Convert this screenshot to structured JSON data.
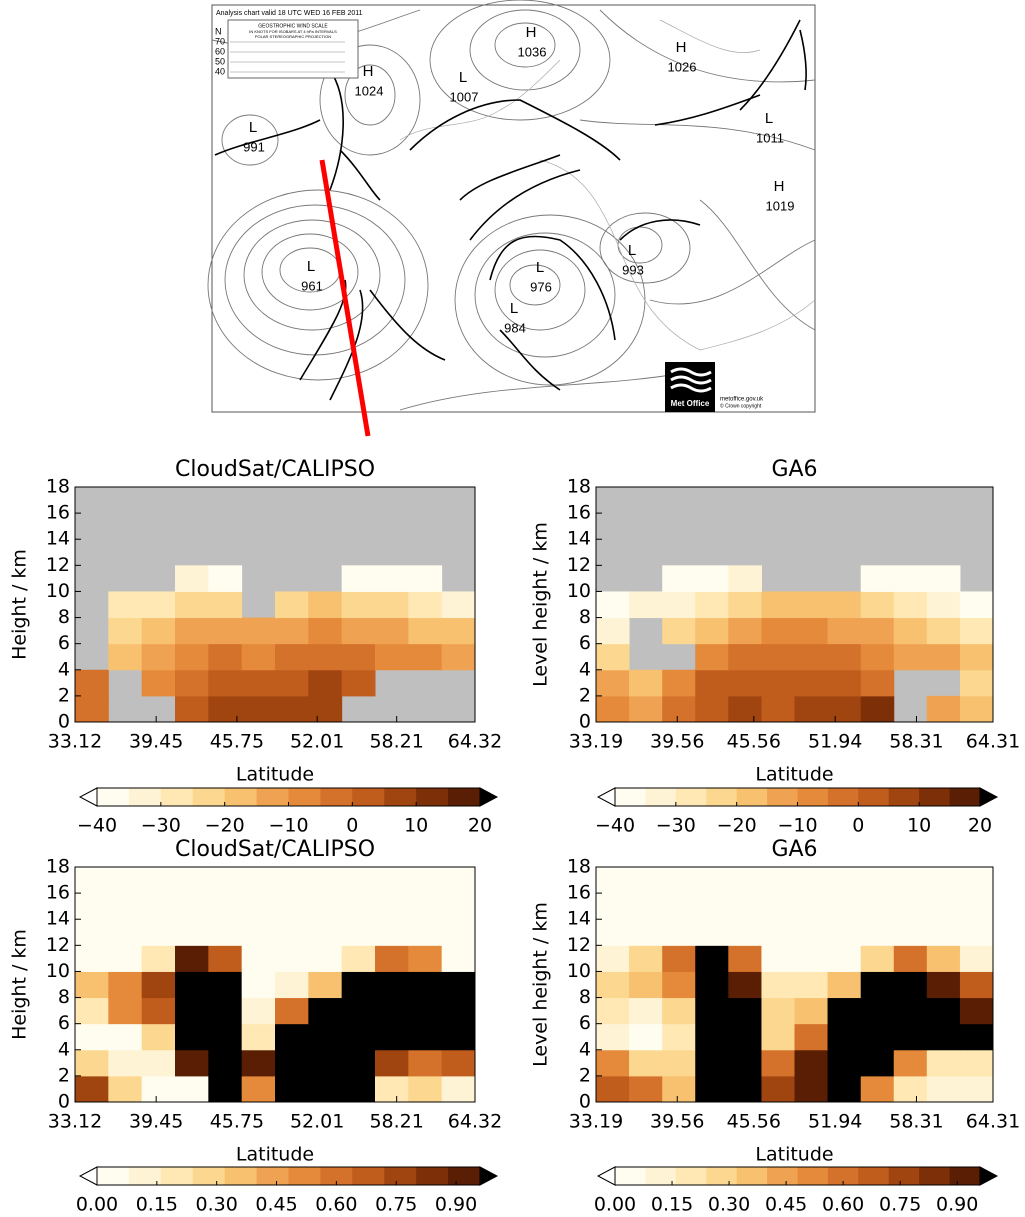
{
  "map": {
    "header": "Analysis chart valid 18 UTC WED 16 FEB 2011",
    "legend_title": "GEOSTROPHIC WIND SCALE",
    "legend_lines": [
      "IN KNOTS FOR ISOBARS AT 4 hPa INTERVALS",
      "POLAR STEREOGRAPHIC PROJECTION"
    ],
    "legend_lats": [
      "N",
      70,
      60,
      50,
      40
    ],
    "centers": [
      {
        "type": "H",
        "value": 1036
      },
      {
        "type": "H",
        "value": 1026
      },
      {
        "type": "H",
        "value": 1024
      },
      {
        "type": "L",
        "value": 1007
      },
      {
        "type": "L",
        "value": 991
      },
      {
        "type": "L",
        "value": 1011
      },
      {
        "type": "H",
        "value": 1019
      },
      {
        "type": "L",
        "value": 961
      },
      {
        "type": "L",
        "value": 976
      },
      {
        "type": "L",
        "value": 984
      },
      {
        "type": "L",
        "value": 993
      }
    ],
    "logo": "Met Office",
    "site": "metoffice.gov.uk",
    "copyright": "© Crown copyright"
  },
  "chart_data": [
    {
      "type": "heatmap",
      "title": "CloudSat/CALIPSO",
      "xlabel": "Latitude",
      "ylabel": "Height / km",
      "xlim": [
        33.12,
        64.32
      ],
      "xticks": [
        33.12,
        39.45,
        45.75,
        52.01,
        58.21,
        64.32
      ],
      "ylim": [
        0,
        18
      ],
      "yticks": [
        0,
        2,
        4,
        6,
        8,
        10,
        12,
        14,
        16,
        18
      ],
      "xbins": [
        33.12,
        35.72,
        38.32,
        40.92,
        43.52,
        46.12,
        48.72,
        51.32,
        53.92,
        56.52,
        59.12,
        61.72,
        64.32
      ],
      "ybins": [
        0,
        2,
        4,
        6,
        8,
        10,
        12,
        14,
        16,
        18
      ],
      "z": [
        [
          0,
          null,
          null,
          5,
          8,
          8,
          10,
          10,
          null,
          null,
          null,
          null
        ],
        [
          -2,
          null,
          -5,
          0,
          2,
          3,
          5,
          8,
          5,
          null,
          null,
          null
        ],
        [
          null,
          -15,
          -10,
          -5,
          -3,
          -5,
          -2,
          0,
          -2,
          -5,
          -8,
          -10
        ],
        [
          null,
          -20,
          -18,
          -12,
          -10,
          -12,
          -10,
          -8,
          -10,
          -12,
          -15,
          -18
        ],
        [
          null,
          -25,
          -25,
          -20,
          -22,
          null,
          -20,
          -18,
          -20,
          -22,
          -28,
          -30
        ],
        [
          null,
          null,
          null,
          -30,
          -35,
          null,
          null,
          null,
          -35,
          -38,
          -40,
          null
        ],
        [
          null,
          null,
          null,
          null,
          null,
          null,
          null,
          null,
          null,
          null,
          null,
          null
        ],
        [
          null,
          null,
          null,
          null,
          null,
          null,
          null,
          null,
          null,
          null,
          null,
          null
        ],
        [
          null,
          null,
          null,
          null,
          null,
          null,
          null,
          null,
          null,
          null,
          null,
          null
        ]
      ],
      "missing_color": "#bfbfbf",
      "colorbar": {
        "levels": [
          -40,
          -35,
          -30,
          -25,
          -20,
          -15,
          -10,
          -5,
          0,
          5,
          10,
          15,
          20
        ],
        "colors": [
          "#fffdf0",
          "#fff3d6",
          "#ffe8b3",
          "#fcd78f",
          "#f7c170",
          "#efa352",
          "#e48a3a",
          "#d4712a",
          "#c05c1c",
          "#a04410",
          "#7d2f08",
          "#5a1e05"
        ],
        "under_color": "#ffffff",
        "over_color": "#000000",
        "ticks": [
          {
            "value": -40,
            "label": "−40"
          },
          {
            "value": -30,
            "label": "−30"
          },
          {
            "value": -20,
            "label": "−20"
          },
          {
            "value": -10,
            "label": "−10"
          },
          0,
          10,
          20
        ]
      }
    },
    {
      "type": "heatmap",
      "title": "GA6",
      "xlabel": "Latitude",
      "ylabel": "Level height / km",
      "xlim": [
        33.19,
        64.31
      ],
      "xticks": [
        33.19,
        39.56,
        45.56,
        51.94,
        58.31,
        64.31
      ],
      "ylim": [
        0,
        18
      ],
      "yticks": [
        0,
        2,
        4,
        6,
        8,
        10,
        12,
        14,
        16,
        18
      ],
      "xbins": [
        33.19,
        35.78,
        38.38,
        40.97,
        43.56,
        46.16,
        48.75,
        51.34,
        53.94,
        56.53,
        59.12,
        61.72,
        64.31
      ],
      "ybins": [
        0,
        2,
        4,
        6,
        8,
        10,
        12,
        14,
        16,
        18
      ],
      "z": [
        [
          -5,
          -10,
          0,
          5,
          10,
          5,
          8,
          10,
          12,
          null,
          -10,
          -15
        ],
        [
          -10,
          -15,
          -5,
          2,
          5,
          3,
          5,
          5,
          0,
          null,
          null,
          -20
        ],
        [
          -20,
          null,
          null,
          -5,
          -3,
          0,
          -2,
          0,
          -5,
          -10,
          -12,
          -15
        ],
        [
          -30,
          null,
          -20,
          -15,
          -10,
          -5,
          -8,
          -10,
          -12,
          -15,
          -20,
          -25
        ],
        [
          -35,
          -30,
          -30,
          -25,
          -20,
          -15,
          -15,
          -18,
          -20,
          -25,
          -30,
          -35
        ],
        [
          null,
          null,
          -35,
          -35,
          -30,
          null,
          null,
          null,
          -35,
          -38,
          -40,
          null
        ],
        [
          null,
          null,
          null,
          null,
          null,
          null,
          null,
          null,
          null,
          null,
          null,
          null
        ],
        [
          null,
          null,
          null,
          null,
          null,
          null,
          null,
          null,
          null,
          null,
          null,
          null
        ],
        [
          null,
          null,
          null,
          null,
          null,
          null,
          null,
          null,
          null,
          null,
          null,
          null
        ]
      ],
      "missing_color": "#bfbfbf",
      "colorbar": {
        "levels": [
          -40,
          -35,
          -30,
          -25,
          -20,
          -15,
          -10,
          -5,
          0,
          5,
          10,
          15,
          20
        ],
        "colors": [
          "#fffdf0",
          "#fff3d6",
          "#ffe8b3",
          "#fcd78f",
          "#f7c170",
          "#efa352",
          "#e48a3a",
          "#d4712a",
          "#c05c1c",
          "#a04410",
          "#7d2f08",
          "#5a1e05"
        ],
        "under_color": "#ffffff",
        "over_color": "#000000",
        "ticks": [
          {
            "value": -40,
            "label": "−40"
          },
          {
            "value": -30,
            "label": "−30"
          },
          {
            "value": -20,
            "label": "−20"
          },
          {
            "value": -10,
            "label": "−10"
          },
          0,
          10,
          20
        ]
      }
    },
    {
      "type": "heatmap",
      "title": "CloudSat/CALIPSO",
      "xlabel": "Latitude",
      "ylabel": "Height / km",
      "xlim": [
        33.12,
        64.32
      ],
      "xticks": [
        33.12,
        39.45,
        45.75,
        52.01,
        58.21,
        64.32
      ],
      "ylim": [
        0,
        18
      ],
      "yticks": [
        0,
        2,
        4,
        6,
        8,
        10,
        12,
        14,
        16,
        18
      ],
      "xbins": [
        33.12,
        35.72,
        38.32,
        40.92,
        43.52,
        46.12,
        48.72,
        51.32,
        53.92,
        56.52,
        59.12,
        61.72,
        64.32
      ],
      "ybins": [
        0,
        2,
        4,
        6,
        8,
        10,
        12,
        14,
        16,
        18
      ],
      "z": [
        [
          0.8,
          0.3,
          0,
          0,
          1,
          0.5,
          1,
          1,
          1,
          0.2,
          0.3,
          0.1
        ],
        [
          0.3,
          0.1,
          0.1,
          0.9,
          1,
          0.9,
          1,
          1,
          1,
          0.8,
          0.6,
          0.7
        ],
        [
          0,
          0,
          0.3,
          1,
          1,
          0.2,
          1,
          1,
          1,
          1,
          1,
          1
        ],
        [
          0.2,
          0.5,
          0.7,
          1,
          1,
          0.1,
          0.6,
          1,
          1,
          1,
          1,
          1
        ],
        [
          0.4,
          0.5,
          0.8,
          1,
          1,
          0,
          0.1,
          0.4,
          1,
          1,
          1,
          1
        ],
        [
          0,
          0,
          0.2,
          0.9,
          0.7,
          0,
          0,
          0,
          0.2,
          0.6,
          0.5,
          0
        ],
        [
          0,
          0,
          0,
          0,
          0,
          0,
          0,
          0,
          0,
          0,
          0,
          0
        ],
        [
          0,
          0,
          0,
          0,
          0,
          0,
          0,
          0,
          0,
          0,
          0,
          0
        ],
        [
          0,
          0,
          0,
          0,
          0,
          0,
          0,
          0,
          0,
          0,
          0,
          0
        ]
      ],
      "missing_color": "#bfbfbf",
      "colorbar": {
        "levels": [
          0,
          0.08,
          0.16,
          0.24,
          0.32,
          0.4,
          0.48,
          0.56,
          0.64,
          0.72,
          0.8,
          0.88,
          0.96
        ],
        "colors": [
          "#fffdf0",
          "#fff3d6",
          "#ffe8b3",
          "#fcd78f",
          "#f7c170",
          "#efa352",
          "#e48a3a",
          "#d4712a",
          "#c05c1c",
          "#a04410",
          "#7d2f08",
          "#5a1e05"
        ],
        "under_color": "#ffffff",
        "over_color": "#000000",
        "ticks": [
          {
            "value": 0,
            "label": "0.00"
          },
          {
            "value": 0.15,
            "label": "0.15"
          },
          {
            "value": 0.3,
            "label": "0.30"
          },
          {
            "value": 0.45,
            "label": "0.45"
          },
          {
            "value": 0.6,
            "label": "0.60"
          },
          {
            "value": 0.75,
            "label": "0.75"
          },
          {
            "value": 0.9,
            "label": "0.90"
          }
        ]
      }
    },
    {
      "type": "heatmap",
      "title": "GA6",
      "xlabel": "Latitude",
      "ylabel": "Level height / km",
      "xlim": [
        33.19,
        64.31
      ],
      "xticks": [
        33.19,
        39.56,
        45.56,
        51.94,
        58.31,
        64.31
      ],
      "ylim": [
        0,
        18
      ],
      "yticks": [
        0,
        2,
        4,
        6,
        8,
        10,
        12,
        14,
        16,
        18
      ],
      "xbins": [
        33.19,
        35.78,
        38.38,
        40.97,
        43.56,
        46.16,
        48.75,
        51.34,
        53.94,
        56.53,
        59.12,
        61.72,
        64.31
      ],
      "ybins": [
        0,
        2,
        4,
        6,
        8,
        10,
        12,
        14,
        16,
        18
      ],
      "z": [
        [
          0.7,
          0.6,
          0.4,
          1,
          1,
          0.8,
          0.9,
          1,
          0.5,
          0.2,
          0.1,
          0.1
        ],
        [
          0.5,
          0.3,
          0.3,
          1,
          1,
          0.6,
          0.9,
          1,
          1,
          0.5,
          0.2,
          0.2
        ],
        [
          0.1,
          0.05,
          0.2,
          1,
          1,
          0.3,
          0.6,
          1,
          1,
          1,
          1,
          1
        ],
        [
          0.2,
          0.1,
          0.3,
          1,
          1,
          0.3,
          0.4,
          1,
          1,
          1,
          1,
          0.9
        ],
        [
          0.3,
          0.4,
          0.5,
          1,
          0.9,
          0.2,
          0.2,
          0.4,
          1,
          1,
          0.9,
          0.7
        ],
        [
          0.1,
          0.3,
          0.6,
          1,
          0.6,
          0,
          0,
          0,
          0.3,
          0.6,
          0.4,
          0.1
        ],
        [
          0,
          0,
          0,
          0,
          0,
          0,
          0,
          0,
          0,
          0,
          0,
          0
        ],
        [
          0,
          0,
          0,
          0,
          0,
          0,
          0,
          0,
          0,
          0,
          0,
          0
        ],
        [
          0,
          0,
          0,
          0,
          0,
          0,
          0,
          0,
          0,
          0,
          0,
          0
        ]
      ],
      "missing_color": "#bfbfbf",
      "colorbar": {
        "levels": [
          0,
          0.08,
          0.16,
          0.24,
          0.32,
          0.4,
          0.48,
          0.56,
          0.64,
          0.72,
          0.8,
          0.88,
          0.96
        ],
        "colors": [
          "#fffdf0",
          "#fff3d6",
          "#ffe8b3",
          "#fcd78f",
          "#f7c170",
          "#efa352",
          "#e48a3a",
          "#d4712a",
          "#c05c1c",
          "#a04410",
          "#7d2f08",
          "#5a1e05"
        ],
        "under_color": "#ffffff",
        "over_color": "#000000",
        "ticks": [
          {
            "value": 0,
            "label": "0.00"
          },
          {
            "value": 0.15,
            "label": "0.15"
          },
          {
            "value": 0.3,
            "label": "0.30"
          },
          {
            "value": 0.45,
            "label": "0.45"
          },
          {
            "value": 0.6,
            "label": "0.60"
          },
          {
            "value": 0.75,
            "label": "0.75"
          },
          {
            "value": 0.9,
            "label": "0.90"
          }
        ]
      }
    }
  ]
}
